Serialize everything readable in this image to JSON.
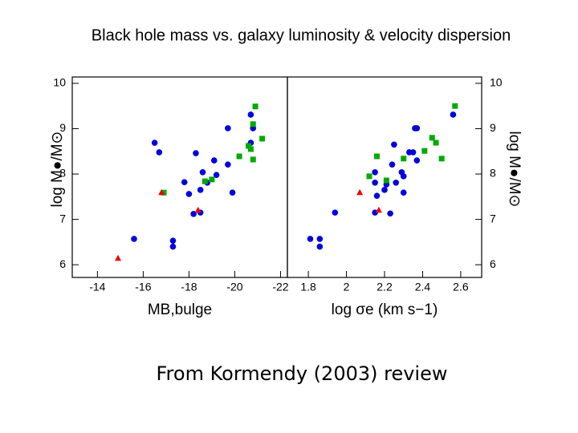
{
  "title": "Black hole mass vs. galaxy luminosity & velocity dispersion",
  "caption": "From Kormendy (2003) review",
  "chart_data": [
    {
      "type": "scatter",
      "x_label": "MB,bulge",
      "y_label": "log M●/M⊙",
      "y_axis_side": "left",
      "xlim": [
        -12.9,
        -22.3
      ],
      "xticks": [
        -14,
        -16,
        -18,
        -20,
        -22
      ],
      "ylim": [
        5.72,
        10.14
      ],
      "yticks": [
        6,
        7,
        8,
        9,
        10
      ],
      "series": [
        {
          "color": "#0000dd",
          "marker": "circle",
          "x": [
            -15.6,
            -17.3,
            -17.3,
            -16.5,
            -16.7,
            -17.8,
            -18.3,
            -18.0,
            -18.5,
            -18.5,
            -18.2,
            -18.6,
            -19.1,
            -19.2,
            -18.8,
            -19.7,
            -19.9,
            -19.7,
            -20.7,
            -20.8,
            -20.7
          ],
          "values": [
            6.57,
            6.53,
            6.4,
            8.69,
            8.48,
            7.82,
            8.46,
            7.56,
            7.65,
            7.15,
            7.12,
            8.04,
            8.3,
            7.98,
            7.81,
            8.21,
            7.59,
            9.01,
            9.31,
            9.01,
            8.69
          ]
        },
        {
          "color": "#00aa00",
          "marker": "square",
          "x": [
            -16.9,
            -18.7,
            -19.0,
            -20.2,
            -20.6,
            -20.7,
            -20.8,
            -20.9,
            -21.2,
            -20.8
          ],
          "values": [
            7.59,
            7.84,
            7.88,
            8.39,
            8.62,
            8.55,
            8.32,
            9.49,
            8.78,
            9.1
          ]
        },
        {
          "color": "#ee0000",
          "marker": "triangle",
          "x": [
            -14.9,
            -16.8,
            -18.4
          ],
          "values": [
            6.14,
            7.59,
            7.2
          ]
        }
      ]
    },
    {
      "type": "scatter",
      "x_label": "log σe (km s−1)",
      "y_label": "log M●/M⊙",
      "y_axis_side": "right",
      "xlim": [
        1.69,
        2.71
      ],
      "xticks": [
        1.8,
        2.0,
        2.2,
        2.4,
        2.6
      ],
      "ylim": [
        5.72,
        10.14
      ],
      "yticks": [
        6,
        7,
        8,
        9,
        10
      ],
      "series": [
        {
          "color": "#0000dd",
          "marker": "circle",
          "x": [
            1.81,
            1.86,
            1.86,
            1.94,
            2.15,
            2.16,
            2.15,
            2.15,
            2.2,
            2.21,
            2.24,
            2.25,
            2.23,
            2.26,
            2.29,
            2.3,
            2.3,
            2.33,
            2.35,
            2.36,
            2.37,
            2.37,
            2.56
          ],
          "values": [
            6.57,
            6.57,
            6.4,
            7.15,
            7.15,
            7.52,
            7.81,
            8.04,
            7.65,
            7.77,
            8.21,
            8.65,
            7.13,
            7.81,
            8.04,
            7.59,
            7.95,
            8.48,
            8.48,
            9.01,
            9.01,
            8.3,
            9.31
          ]
        },
        {
          "color": "#00aa00",
          "marker": "square",
          "x": [
            2.12,
            2.16,
            2.21,
            2.3,
            2.41,
            2.45,
            2.47,
            2.5,
            2.57
          ],
          "values": [
            7.95,
            8.39,
            7.86,
            8.34,
            8.51,
            8.8,
            8.69,
            8.34,
            9.5
          ]
        },
        {
          "color": "#ee0000",
          "marker": "triangle",
          "x": [
            2.07,
            2.17
          ],
          "values": [
            7.59,
            7.2
          ]
        }
      ]
    }
  ]
}
